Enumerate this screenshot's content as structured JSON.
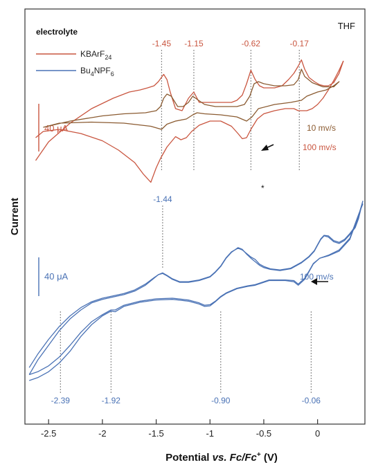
{
  "chart_data": {
    "type": "line",
    "title": "",
    "corner_label": "THF",
    "xlabel_parts": [
      "Potential ",
      "vs. Fc/Fc",
      "+",
      " (V)"
    ],
    "ylabel": "Current",
    "xlim": [
      -2.72,
      0.44
    ],
    "xticks": [
      -2.5,
      -2,
      -1.5,
      -1,
      -0.5,
      0
    ],
    "xtick_labels": [
      "-2.5",
      "-2",
      "-1.5",
      "-1",
      "-0.5",
      "0"
    ],
    "grid": false,
    "legend": {
      "position": "top-left",
      "title": "electrolyte",
      "entries": [
        {
          "name": "KBArF",
          "sub": "24",
          "color": "#c9553f"
        },
        {
          "name": "Bu",
          "sub": "4",
          "name2": "NPF",
          "sub2": "6",
          "color": "#4a72b5"
        }
      ]
    },
    "colors": {
      "KBArF24": "#c9553f",
      "Bu4NPF6": "#4a72b5",
      "KBArF24_10mv": "#8a5a30"
    },
    "scale_bars": [
      {
        "label": "40 μA",
        "color": "#c9553f"
      },
      {
        "label": "40 μA",
        "color": "#4a72b5"
      }
    ],
    "scan_rate_labels": [
      {
        "text": "10 mv/s",
        "color": "#8a5a30"
      },
      {
        "text": "100 mv/s",
        "color": "#c9553f"
      },
      {
        "text": "100 mv/s",
        "color": "#4a72b5"
      }
    ],
    "asterisk": "*",
    "potential_markers_KBArF24": [
      -1.45,
      -1.15,
      -0.62,
      -0.17
    ],
    "potential_labels_KBArF24": [
      "-1.45",
      "-1.15",
      "-0.62",
      "-0.17"
    ],
    "potential_markers_Bu4NPF6_top": [
      -1.44
    ],
    "potential_labels_Bu4NPF6_top": [
      "-1.44"
    ],
    "potential_markers_Bu4NPF6_bottom": [
      -2.39,
      -1.92,
      -0.9,
      -0.06
    ],
    "potential_labels_Bu4NPF6_bottom": [
      "-2.39",
      "-1.92",
      "-0.90",
      "-0.06"
    ],
    "series": [
      {
        "name": "KBArF24 100 mv/s (forward)",
        "color": "#c9553f",
        "x": [
          -2.62,
          -2.5,
          -2.3,
          -2.1,
          -1.9,
          -1.75,
          -1.65,
          -1.58,
          -1.52,
          -1.48,
          -1.43,
          -1.4,
          -1.37,
          -1.32,
          -1.26,
          -1.2,
          -1.15,
          -1.1,
          -1.0,
          -0.9,
          -0.8,
          -0.75,
          -0.7,
          -0.66,
          -0.62,
          -0.58,
          -0.54,
          -0.5,
          -0.45,
          -0.4,
          -0.33,
          -0.27,
          -0.22,
          -0.18,
          -0.15,
          -0.12,
          -0.08,
          -0.03,
          0.02,
          0.06,
          0.1,
          0.15,
          0.2,
          0.24
        ],
        "y": [
          12,
          30,
          48,
          62,
          72,
          78,
          80,
          82,
          84,
          88,
          95,
          90,
          78,
          62,
          60,
          72,
          78,
          68,
          68,
          68,
          68,
          70,
          75,
          86,
          99,
          90,
          84,
          82,
          82,
          82,
          84,
          90,
          96,
          103,
          109,
          100,
          92,
          88,
          85,
          84,
          84,
          87,
          96,
          108
        ]
      },
      {
        "name": "KBArF24 100 mv/s (reverse)",
        "color": "#c9553f",
        "x": [
          0.24,
          0.2,
          0.15,
          0.1,
          0.05,
          0.0,
          -0.05,
          -0.1,
          -0.15,
          -0.18,
          -0.22,
          -0.3,
          -0.4,
          -0.5,
          -0.56,
          -0.62,
          -0.66,
          -0.7,
          -0.74,
          -0.8,
          -0.9,
          -1.0,
          -1.1,
          -1.17,
          -1.22,
          -1.27,
          -1.32,
          -1.4,
          -1.46,
          -1.5,
          -1.55,
          -1.62,
          -1.7,
          -1.85,
          -2.0,
          -2.2,
          -2.4,
          -2.55,
          -2.62
        ],
        "y": [
          108,
          99,
          89,
          80,
          72,
          66,
          62,
          60,
          60,
          60,
          62,
          62,
          60,
          57,
          52,
          42,
          34,
          33,
          38,
          45,
          50,
          50,
          46,
          40,
          34,
          32,
          35,
          25,
          14,
          5,
          -9,
          -1,
          10,
          22,
          31,
          38,
          42,
          40,
          34
        ]
      },
      {
        "name": "KBArF24 10 mv/s",
        "color": "#8a5a30",
        "x": [
          -2.55,
          -2.3,
          -2.0,
          -1.8,
          -1.6,
          -1.5,
          -1.46,
          -1.43,
          -1.4,
          -1.36,
          -1.3,
          -1.25,
          -1.2,
          -1.16,
          -1.12,
          -1.05,
          -0.95,
          -0.85,
          -0.75,
          -0.68,
          -0.63,
          -0.59,
          -0.55,
          -0.5,
          -0.4,
          -0.3,
          -0.22,
          -0.18,
          -0.15,
          -0.12,
          -0.05,
          0.05,
          0.15,
          0.2,
          0.15,
          0.08,
          0.0,
          -0.1,
          -0.15,
          -0.25,
          -0.4,
          -0.55,
          -0.61,
          -0.66,
          -0.75,
          -0.9,
          -1.05,
          -1.12,
          -1.16,
          -1.22,
          -1.32,
          -1.4,
          -1.45,
          -1.55,
          -1.8,
          -2.1,
          -2.4,
          -2.55
        ],
        "y": [
          44,
          50,
          55,
          57,
          58,
          60,
          64,
          72,
          76,
          74,
          64,
          64,
          68,
          74,
          71,
          66,
          64,
          64,
          64,
          66,
          74,
          86,
          88,
          86,
          84,
          84,
          85,
          90,
          100,
          93,
          87,
          83,
          83,
          88,
          84,
          80,
          78,
          74,
          70,
          68,
          66,
          62,
          54,
          50,
          54,
          56,
          57,
          58,
          56,
          52,
          50,
          47,
          42,
          45,
          48,
          49,
          48,
          44
        ]
      },
      {
        "name": "Bu4NPF6 100 mv/s (A)",
        "color": "#4a72b5",
        "x": [
          -2.68,
          -2.6,
          -2.5,
          -2.4,
          -2.3,
          -2.2,
          -2.1,
          -2.0,
          -1.9,
          -1.8,
          -1.7,
          -1.6,
          -1.52,
          -1.48,
          -1.44,
          -1.4,
          -1.35,
          -1.28,
          -1.2,
          -1.1,
          -1.0,
          -0.95,
          -0.9,
          -0.85,
          -0.8,
          -0.74,
          -0.7,
          -0.66,
          -0.62,
          -0.58,
          -0.54,
          -0.5,
          -0.44,
          -0.35,
          -0.25,
          -0.15,
          -0.08,
          -0.03,
          0.0,
          0.03,
          0.06,
          0.1,
          0.15,
          0.2,
          0.25,
          0.3,
          0.35,
          0.38,
          0.4,
          0.42,
          0.38,
          0.3,
          0.2,
          0.1,
          0.02,
          -0.04,
          -0.08,
          -0.12,
          -0.18,
          -0.22,
          -0.3,
          -0.38,
          -0.45,
          -0.5,
          -0.58,
          -0.65,
          -0.75,
          -0.85,
          -0.9,
          -0.95,
          -1.0,
          -1.05,
          -1.1,
          -1.2,
          -1.35,
          -1.5,
          -1.65,
          -1.8,
          -1.88,
          -1.92,
          -2.0,
          -2.1,
          -2.2,
          -2.3,
          -2.4,
          -2.5,
          -2.6,
          -2.68
        ],
        "y": [
          -190,
          -165,
          -140,
          -115,
          -95,
          -80,
          -68,
          -62,
          -58,
          -54,
          -48,
          -38,
          -26,
          -20,
          -18,
          -22,
          -28,
          -33,
          -33,
          -30,
          -24,
          -16,
          -6,
          8,
          18,
          26,
          23,
          15,
          8,
          2,
          -4,
          -8,
          -11,
          -13,
          -10,
          0,
          10,
          20,
          30,
          40,
          46,
          44,
          36,
          33,
          38,
          48,
          60,
          75,
          90,
          105,
          80,
          40,
          20,
          12,
          8,
          -2,
          -15,
          -28,
          -38,
          -32,
          -30,
          -30,
          -30,
          -33,
          -38,
          -40,
          -44,
          -52,
          -58,
          -66,
          -73,
          -74,
          -70,
          -65,
          -62,
          -63,
          -67,
          -74,
          -83,
          -82,
          -90,
          -105,
          -125,
          -150,
          -170,
          -185,
          -195,
          -200
        ]
      },
      {
        "name": "Bu4NPF6 100 mv/s (B)",
        "color": "#4a72b5",
        "x": [
          -2.68,
          -2.6,
          -2.5,
          -2.4,
          -2.3,
          -2.2,
          -2.1,
          -2.0,
          -1.9,
          -1.8,
          -1.7,
          -1.6,
          -1.52,
          -1.48,
          -1.44,
          -1.4,
          -1.35,
          -1.28,
          -1.2,
          -1.1,
          -1.0,
          -0.95,
          -0.9,
          -0.85,
          -0.8,
          -0.74,
          -0.7,
          -0.66,
          -0.62,
          -0.58,
          -0.54,
          -0.5,
          -0.44,
          -0.35,
          -0.25,
          -0.15,
          -0.08,
          -0.03,
          0.0,
          0.03,
          0.06,
          0.1,
          0.15,
          0.2,
          0.25,
          0.3,
          0.35,
          0.38,
          0.4,
          0.42,
          0.38,
          0.3,
          0.2,
          0.1,
          0.02,
          -0.04,
          -0.08,
          -0.12,
          -0.18,
          -0.22,
          -0.3,
          -0.38,
          -0.45,
          -0.5,
          -0.58,
          -0.65,
          -0.75,
          -0.85,
          -0.9,
          -0.95,
          -1.0,
          -1.05,
          -1.1,
          -1.2,
          -1.35,
          -1.5,
          -1.65,
          -1.8,
          -1.88,
          -1.92,
          -2.0,
          -2.1,
          -2.2,
          -2.3,
          -2.4,
          -2.5,
          -2.6,
          -2.68
        ],
        "y": [
          -178,
          -155,
          -130,
          -108,
          -90,
          -76,
          -66,
          -60,
          -56,
          -52,
          -46,
          -36,
          -25,
          -20,
          -17,
          -21,
          -27,
          -32,
          -32,
          -29,
          -23,
          -15,
          -5,
          9,
          19,
          25,
          22,
          16,
          10,
          6,
          -2,
          -6,
          -10,
          -12,
          -9,
          1,
          11,
          21,
          31,
          41,
          47,
          46,
          38,
          35,
          40,
          50,
          62,
          78,
          92,
          100,
          82,
          42,
          22,
          13,
          8,
          -1,
          -14,
          -26,
          -36,
          -30,
          -29,
          -29,
          -29,
          -32,
          -37,
          -39,
          -43,
          -51,
          -57,
          -65,
          -71,
          -72,
          -68,
          -63,
          -60,
          -61,
          -65,
          -72,
          -80,
          -80,
          -88,
          -100,
          -118,
          -140,
          -160,
          -175,
          -185,
          -190
        ]
      }
    ]
  }
}
